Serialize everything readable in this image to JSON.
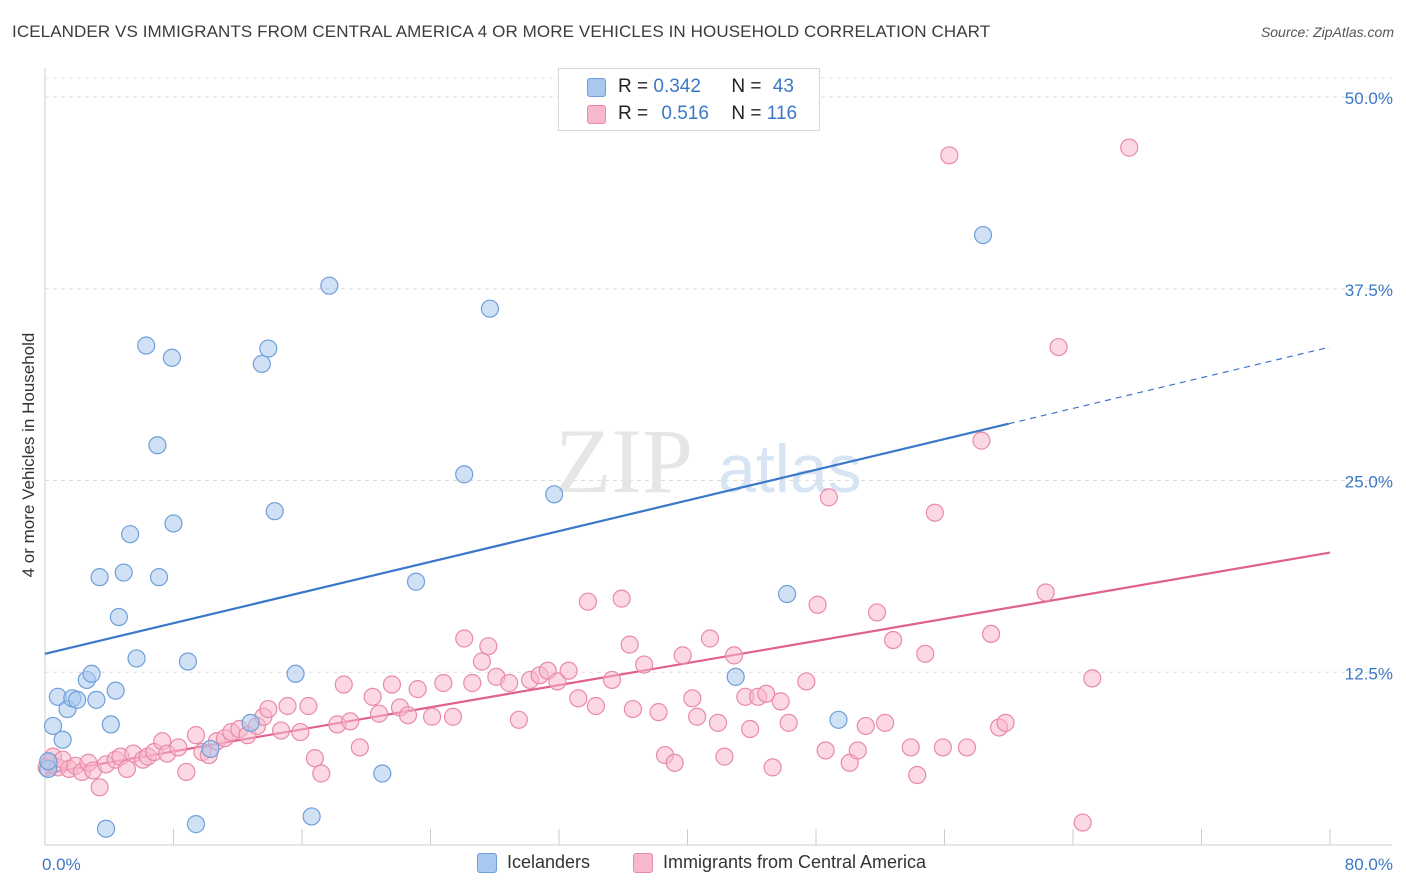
{
  "title": "ICELANDER VS IMMIGRANTS FROM CENTRAL AMERICA 4 OR MORE VEHICLES IN HOUSEHOLD CORRELATION CHART",
  "source": "Source: ZipAtlas.com",
  "watermark": {
    "zip": "ZIP",
    "atlas": "atlas"
  },
  "legend": {
    "rows": [
      {
        "r_label": "R =",
        "r_value": "0.342",
        "n_label": "N =",
        "n_value": "43",
        "color": "#a9c8ef",
        "border": "#6f9fd8"
      },
      {
        "r_label": "R =",
        "r_value": "0.516",
        "n_label": "N =",
        "n_value": "116",
        "color": "#f7b8cb",
        "border": "#e98aa8"
      }
    ]
  },
  "bottom_legend": {
    "items": [
      {
        "label": "Icelanders",
        "color": "#a9c8ef",
        "border": "#6f9fd8"
      },
      {
        "label": "Immigrants from Central America",
        "color": "#f7b8cb",
        "border": "#e98aa8"
      }
    ]
  },
  "chart_data": {
    "type": "scatter",
    "title": "ICELANDER VS IMMIGRANTS FROM CENTRAL AMERICA 4 OR MORE VEHICLES IN HOUSEHOLD CORRELATION CHART",
    "xlabel": "",
    "ylabel": "4 or more Vehicles in Household",
    "xlim": [
      0,
      80
    ],
    "ylim": [
      0,
      50
    ],
    "x_tick_labels": [
      "0.0%",
      "80.0%"
    ],
    "y_ticks": [
      12.5,
      25.0,
      37.5,
      50.0
    ],
    "y_tick_labels": [
      "12.5%",
      "25.0%",
      "37.5%",
      "50.0%"
    ],
    "grid": true,
    "series": [
      {
        "name": "Icelanders",
        "color": "#a9c8ef",
        "stroke": "#6f9fd8",
        "line_color": "#3b78c9",
        "trend": {
          "x": [
            0,
            60
          ],
          "y": [
            13.7,
            28.7
          ],
          "dashed_to": [
            80,
            33.7
          ]
        },
        "points": [
          [
            0.2,
            6.2
          ],
          [
            0.5,
            9.0
          ],
          [
            0.8,
            10.9
          ],
          [
            1.1,
            8.1
          ],
          [
            1.4,
            10.1
          ],
          [
            1.7,
            10.8
          ],
          [
            2.0,
            10.7
          ],
          [
            2.6,
            12.0
          ],
          [
            2.9,
            12.4
          ],
          [
            3.2,
            10.7
          ],
          [
            3.4,
            18.7
          ],
          [
            3.8,
            2.3
          ],
          [
            4.1,
            9.1
          ],
          [
            4.4,
            11.3
          ],
          [
            4.6,
            16.1
          ],
          [
            4.9,
            19.0
          ],
          [
            5.3,
            21.5
          ],
          [
            5.7,
            13.4
          ],
          [
            6.3,
            33.8
          ],
          [
            7.0,
            27.3
          ],
          [
            7.1,
            18.7
          ],
          [
            7.9,
            33.0
          ],
          [
            8.0,
            22.2
          ],
          [
            8.9,
            13.2
          ],
          [
            9.4,
            2.6
          ],
          [
            10.3,
            7.5
          ],
          [
            12.8,
            9.2
          ],
          [
            13.5,
            32.6
          ],
          [
            13.9,
            33.6
          ],
          [
            14.3,
            23.0
          ],
          [
            15.6,
            12.4
          ],
          [
            16.6,
            3.1
          ],
          [
            17.7,
            37.7
          ],
          [
            21.0,
            5.9
          ],
          [
            23.1,
            18.4
          ],
          [
            26.1,
            25.4
          ],
          [
            27.7,
            36.2
          ],
          [
            31.7,
            24.1
          ],
          [
            43.0,
            12.2
          ],
          [
            46.2,
            17.6
          ],
          [
            49.4,
            9.4
          ],
          [
            58.4,
            41.0
          ],
          [
            0.2,
            6.7
          ]
        ]
      },
      {
        "name": "Immigrants from Central America",
        "color": "#f7b8cb",
        "stroke": "#e98aa8",
        "line_color": "#e0608e",
        "trend": {
          "x": [
            0,
            80
          ],
          "y": [
            5.9,
            20.3
          ]
        },
        "points": [
          [
            0.1,
            6.3
          ],
          [
            0.3,
            6.6
          ],
          [
            0.5,
            7.0
          ],
          [
            0.8,
            6.3
          ],
          [
            1.1,
            6.8
          ],
          [
            1.5,
            6.2
          ],
          [
            1.9,
            6.4
          ],
          [
            2.3,
            6.0
          ],
          [
            2.7,
            6.6
          ],
          [
            3.0,
            6.1
          ],
          [
            3.4,
            5.0
          ],
          [
            3.8,
            6.5
          ],
          [
            4.4,
            6.8
          ],
          [
            4.7,
            7.0
          ],
          [
            5.1,
            6.2
          ],
          [
            5.5,
            7.2
          ],
          [
            6.1,
            6.8
          ],
          [
            6.4,
            7.0
          ],
          [
            6.8,
            7.3
          ],
          [
            7.3,
            8.0
          ],
          [
            7.6,
            7.2
          ],
          [
            8.3,
            7.6
          ],
          [
            8.8,
            6.0
          ],
          [
            9.4,
            8.4
          ],
          [
            9.8,
            7.3
          ],
          [
            10.2,
            7.1
          ],
          [
            10.7,
            8.0
          ],
          [
            11.2,
            8.2
          ],
          [
            11.6,
            8.6
          ],
          [
            12.1,
            8.8
          ],
          [
            12.6,
            8.4
          ],
          [
            13.2,
            9.0
          ],
          [
            13.6,
            9.6
          ],
          [
            13.9,
            10.1
          ],
          [
            14.7,
            8.7
          ],
          [
            15.1,
            10.3
          ],
          [
            15.9,
            8.6
          ],
          [
            16.4,
            10.3
          ],
          [
            16.8,
            6.9
          ],
          [
            17.2,
            5.9
          ],
          [
            18.2,
            9.1
          ],
          [
            18.6,
            11.7
          ],
          [
            19.0,
            9.3
          ],
          [
            19.6,
            7.6
          ],
          [
            20.4,
            10.9
          ],
          [
            20.8,
            9.8
          ],
          [
            21.6,
            11.7
          ],
          [
            22.1,
            10.2
          ],
          [
            22.6,
            9.7
          ],
          [
            23.2,
            11.4
          ],
          [
            24.1,
            9.6
          ],
          [
            24.8,
            11.8
          ],
          [
            25.4,
            9.6
          ],
          [
            26.1,
            14.7
          ],
          [
            26.6,
            11.8
          ],
          [
            27.2,
            13.2
          ],
          [
            27.6,
            14.2
          ],
          [
            28.1,
            12.2
          ],
          [
            28.9,
            11.8
          ],
          [
            29.5,
            9.4
          ],
          [
            30.2,
            12.0
          ],
          [
            30.8,
            12.3
          ],
          [
            31.3,
            12.6
          ],
          [
            31.9,
            11.9
          ],
          [
            32.6,
            12.6
          ],
          [
            33.2,
            10.8
          ],
          [
            33.8,
            17.1
          ],
          [
            34.3,
            10.3
          ],
          [
            35.3,
            12.0
          ],
          [
            35.9,
            17.3
          ],
          [
            36.4,
            14.3
          ],
          [
            36.6,
            10.1
          ],
          [
            37.3,
            13.0
          ],
          [
            38.2,
            9.9
          ],
          [
            38.6,
            7.1
          ],
          [
            39.2,
            6.6
          ],
          [
            39.7,
            13.6
          ],
          [
            40.3,
            10.8
          ],
          [
            40.6,
            9.6
          ],
          [
            41.4,
            14.7
          ],
          [
            41.9,
            9.2
          ],
          [
            42.3,
            7.0
          ],
          [
            42.9,
            13.6
          ],
          [
            43.6,
            10.9
          ],
          [
            43.9,
            8.8
          ],
          [
            44.4,
            10.9
          ],
          [
            44.9,
            11.1
          ],
          [
            45.3,
            6.3
          ],
          [
            45.8,
            10.6
          ],
          [
            46.3,
            9.2
          ],
          [
            47.4,
            11.9
          ],
          [
            48.1,
            16.9
          ],
          [
            48.6,
            7.4
          ],
          [
            48.8,
            23.9
          ],
          [
            50.1,
            6.6
          ],
          [
            50.6,
            7.4
          ],
          [
            51.1,
            9.0
          ],
          [
            51.8,
            16.4
          ],
          [
            52.3,
            9.2
          ],
          [
            52.8,
            14.6
          ],
          [
            53.9,
            7.6
          ],
          [
            54.3,
            5.8
          ],
          [
            54.8,
            13.7
          ],
          [
            55.4,
            22.9
          ],
          [
            55.9,
            7.6
          ],
          [
            56.3,
            46.2
          ],
          [
            57.4,
            7.6
          ],
          [
            58.3,
            27.6
          ],
          [
            58.9,
            15.0
          ],
          [
            59.4,
            8.9
          ],
          [
            59.8,
            9.2
          ],
          [
            62.3,
            17.7
          ],
          [
            63.1,
            33.7
          ],
          [
            64.6,
            2.7
          ],
          [
            67.5,
            46.7
          ],
          [
            65.2,
            12.1
          ]
        ]
      }
    ]
  }
}
